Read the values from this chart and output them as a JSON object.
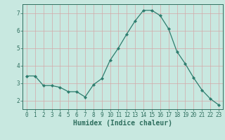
{
  "x": [
    0,
    1,
    2,
    3,
    4,
    5,
    6,
    7,
    8,
    9,
    10,
    11,
    12,
    13,
    14,
    15,
    16,
    17,
    18,
    19,
    20,
    21,
    22,
    23
  ],
  "y": [
    3.4,
    3.4,
    2.85,
    2.85,
    2.75,
    2.5,
    2.5,
    2.2,
    2.9,
    3.25,
    4.3,
    5.0,
    5.8,
    6.55,
    7.15,
    7.15,
    6.85,
    6.1,
    4.8,
    4.1,
    3.3,
    2.6,
    2.1,
    1.75
  ],
  "line_color": "#2e7d6e",
  "marker": "D",
  "marker_size": 2.2,
  "bg_color": "#c8e8e0",
  "grid_color_major": "#d4a8a8",
  "grid_color_minor": "#d4a8a8",
  "xlabel": "Humidex (Indice chaleur)",
  "ylim": [
    1.5,
    7.5
  ],
  "xlim": [
    -0.5,
    23.5
  ],
  "yticks": [
    2,
    3,
    4,
    5,
    6,
    7
  ],
  "xticks": [
    0,
    1,
    2,
    3,
    4,
    5,
    6,
    7,
    8,
    9,
    10,
    11,
    12,
    13,
    14,
    15,
    16,
    17,
    18,
    19,
    20,
    21,
    22,
    23
  ],
  "tick_label_fontsize": 5.5,
  "xlabel_fontsize": 7.0,
  "axis_color": "#2e6e5e",
  "tick_color": "#2e6e5e",
  "line_width": 0.9
}
